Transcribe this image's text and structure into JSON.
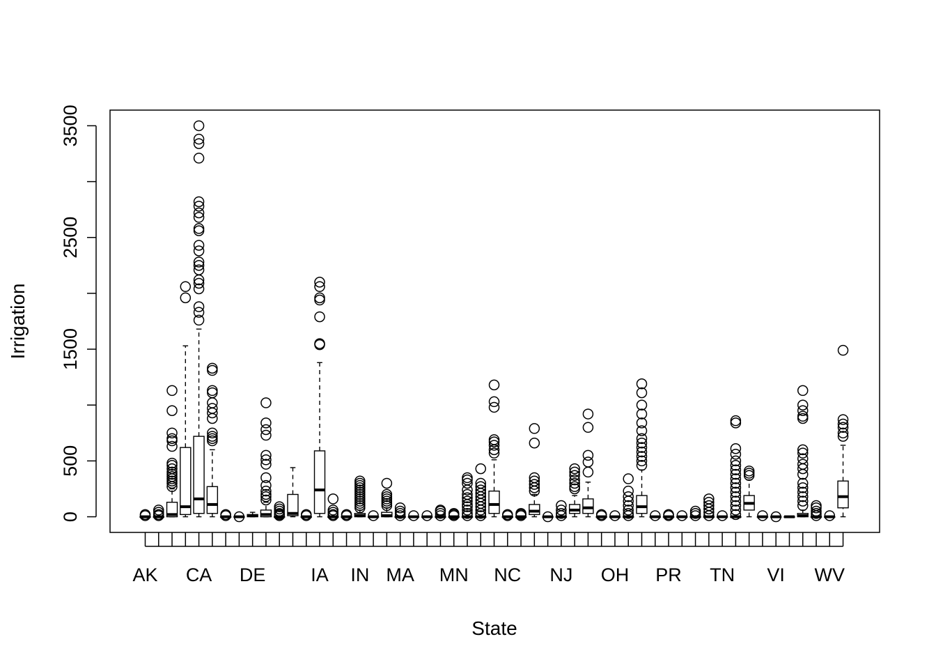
{
  "chart_data": {
    "type": "boxplot",
    "title": "",
    "xlabel": "State",
    "ylabel": "Irrigation",
    "ylim": [
      -140,
      3640
    ],
    "yticks": [
      0,
      500,
      1500,
      2500,
      3500
    ],
    "grid": false,
    "legend": "none",
    "category_labels": [
      "AK",
      "CA",
      "DE",
      "IA",
      "IN",
      "MA",
      "MN",
      "NC",
      "NJ",
      "OH",
      "PR",
      "TN",
      "VI",
      "WV"
    ],
    "boxes": [
      {
        "label": "AK",
        "stats": [
          0,
          0,
          0,
          0,
          0
        ],
        "outliers": [
          10,
          20
        ]
      },
      {
        "label": "",
        "stats": [
          0,
          0,
          0,
          0,
          0
        ],
        "outliers": [
          10,
          20,
          40,
          60
        ]
      },
      {
        "label": "",
        "stats": [
          0,
          0,
          20,
          130,
          250
        ],
        "outliers": [
          270,
          300,
          320,
          340,
          360,
          380,
          400,
          430,
          460,
          480,
          630,
          680,
          700,
          750,
          950,
          1130
        ]
      },
      {
        "label": "",
        "stats": [
          0,
          20,
          90,
          620,
          1530
        ],
        "outliers": [
          1960,
          2060
        ]
      },
      {
        "label": "CA",
        "stats": [
          0,
          30,
          160,
          720,
          1680
        ],
        "outliers": [
          1760,
          1830,
          1880,
          2040,
          2090,
          2120,
          2210,
          2250,
          2280,
          2380,
          2430,
          2560,
          2580,
          2680,
          2720,
          2780,
          2820,
          3210,
          3340,
          3380,
          3500
        ]
      },
      {
        "label": "",
        "stats": [
          0,
          30,
          110,
          270,
          600
        ],
        "outliers": [
          680,
          700,
          720,
          750,
          880,
          930,
          970,
          1020,
          1110,
          1130,
          1310,
          1330
        ]
      },
      {
        "label": "",
        "stats": [
          0,
          0,
          0,
          0,
          0
        ],
        "outliers": [
          10,
          20
        ]
      },
      {
        "label": "",
        "stats": [
          0,
          0,
          0,
          0,
          0
        ],
        "outliers": [
          0
        ]
      },
      {
        "label": "DE",
        "stats": [
          0,
          0,
          10,
          20,
          40
        ],
        "outliers": []
      },
      {
        "label": "",
        "stats": [
          0,
          0,
          20,
          60,
          130
        ],
        "outliers": [
          150,
          180,
          200,
          230,
          280,
          350,
          470,
          510,
          550,
          730,
          780,
          840,
          1020
        ]
      },
      {
        "label": "",
        "stats": [
          0,
          0,
          0,
          0,
          0
        ],
        "outliers": [
          10,
          20,
          30,
          50,
          70,
          90
        ]
      },
      {
        "label": "",
        "stats": [
          0,
          10,
          30,
          200,
          440
        ],
        "outliers": []
      },
      {
        "label": "",
        "stats": [
          0,
          0,
          0,
          0,
          0
        ],
        "outliers": [
          10,
          20
        ]
      },
      {
        "label": "IA",
        "stats": [
          0,
          30,
          240,
          590,
          1380
        ],
        "outliers": [
          1540,
          1550,
          1790,
          1940,
          1960,
          2060,
          2100
        ]
      },
      {
        "label": "",
        "stats": [
          0,
          0,
          0,
          0,
          0
        ],
        "outliers": [
          10,
          20,
          40,
          60,
          160
        ]
      },
      {
        "label": "",
        "stats": [
          0,
          0,
          0,
          0,
          0
        ],
        "outliers": [
          10,
          20
        ]
      },
      {
        "label": "IN",
        "stats": [
          0,
          0,
          10,
          30,
          60
        ],
        "outliers": [
          80,
          100,
          120,
          140,
          160,
          180,
          200,
          220,
          240,
          260,
          280,
          300,
          320
        ]
      },
      {
        "label": "",
        "stats": [
          0,
          0,
          0,
          0,
          0
        ],
        "outliers": [
          10
        ]
      },
      {
        "label": "",
        "stats": [
          0,
          0,
          10,
          40,
          80
        ],
        "outliers": [
          100,
          120,
          140,
          160,
          180,
          200,
          300
        ]
      },
      {
        "label": "MA",
        "stats": [
          0,
          0,
          0,
          0,
          0
        ],
        "outliers": [
          10,
          30,
          50,
          80
        ]
      },
      {
        "label": "",
        "stats": [
          0,
          0,
          0,
          0,
          0
        ],
        "outliers": [
          10
        ]
      },
      {
        "label": "",
        "stats": [
          0,
          0,
          0,
          0,
          0
        ],
        "outliers": [
          10
        ]
      },
      {
        "label": "",
        "stats": [
          0,
          0,
          0,
          0,
          0
        ],
        "outliers": [
          10,
          30,
          50,
          60
        ]
      },
      {
        "label": "MN",
        "stats": [
          0,
          0,
          0,
          0,
          0
        ],
        "outliers": [
          10,
          20,
          30
        ]
      },
      {
        "label": "",
        "stats": [
          0,
          0,
          0,
          0,
          0
        ],
        "outliers": [
          10,
          30,
          60,
          90,
          110,
          140,
          170,
          200,
          240,
          300,
          330,
          350
        ]
      },
      {
        "label": "",
        "stats": [
          0,
          0,
          0,
          0,
          0
        ],
        "outliers": [
          10,
          30,
          60,
          90,
          120,
          150,
          180,
          210,
          240,
          270,
          300,
          430
        ]
      },
      {
        "label": "",
        "stats": [
          0,
          30,
          110,
          230,
          510
        ],
        "outliers": [
          570,
          600,
          640,
          670,
          690,
          980,
          1030,
          1180
        ]
      },
      {
        "label": "NC",
        "stats": [
          0,
          0,
          0,
          0,
          0
        ],
        "outliers": [
          10,
          20
        ]
      },
      {
        "label": "",
        "stats": [
          0,
          0,
          0,
          0,
          0
        ],
        "outliers": [
          10,
          20,
          30
        ]
      },
      {
        "label": "",
        "stats": [
          0,
          20,
          50,
          110,
          200
        ],
        "outliers": [
          230,
          260,
          290,
          320,
          350,
          660,
          790
        ]
      },
      {
        "label": "",
        "stats": [
          0,
          0,
          0,
          0,
          0
        ],
        "outliers": [
          0
        ]
      },
      {
        "label": "NJ",
        "stats": [
          0,
          0,
          0,
          0,
          0
        ],
        "outliers": [
          10,
          30,
          60,
          100
        ]
      },
      {
        "label": "",
        "stats": [
          0,
          30,
          60,
          110,
          190
        ],
        "outliers": [
          250,
          270,
          300,
          330,
          370,
          400,
          430
        ]
      },
      {
        "label": "",
        "stats": [
          0,
          30,
          80,
          160,
          310
        ],
        "outliers": [
          400,
          490,
          550,
          800,
          920
        ]
      },
      {
        "label": "",
        "stats": [
          0,
          0,
          0,
          0,
          0
        ],
        "outliers": [
          10,
          20
        ]
      },
      {
        "label": "OH",
        "stats": [
          0,
          0,
          0,
          0,
          0
        ],
        "outliers": [
          10
        ]
      },
      {
        "label": "",
        "stats": [
          0,
          0,
          0,
          0,
          0
        ],
        "outliers": [
          10,
          30,
          60,
          100,
          140,
          180,
          230,
          340
        ]
      },
      {
        "label": "",
        "stats": [
          0,
          30,
          90,
          190,
          420
        ],
        "outliers": [
          460,
          500,
          540,
          580,
          620,
          660,
          700,
          770,
          840,
          920,
          1000,
          1110,
          1190
        ]
      },
      {
        "label": "",
        "stats": [
          0,
          0,
          0,
          0,
          0
        ],
        "outliers": [
          10
        ]
      },
      {
        "label": "PR",
        "stats": [
          0,
          0,
          0,
          0,
          0
        ],
        "outliers": [
          10,
          20
        ]
      },
      {
        "label": "",
        "stats": [
          0,
          0,
          0,
          0,
          0
        ],
        "outliers": [
          10
        ]
      },
      {
        "label": "",
        "stats": [
          0,
          0,
          0,
          0,
          0
        ],
        "outliers": [
          10,
          30,
          50
        ]
      },
      {
        "label": "",
        "stats": [
          0,
          0,
          0,
          0,
          0
        ],
        "outliers": [
          10,
          40,
          70,
          100,
          130,
          160
        ]
      },
      {
        "label": "TN",
        "stats": [
          0,
          0,
          0,
          0,
          0
        ],
        "outliers": [
          10
        ]
      },
      {
        "label": "",
        "stats": [
          0,
          0,
          0,
          0,
          0
        ],
        "outliers": [
          20,
          60,
          100,
          140,
          180,
          220,
          260,
          300,
          340,
          380,
          420,
          460,
          500,
          560,
          610,
          840,
          860
        ]
      },
      {
        "label": "",
        "stats": [
          0,
          60,
          120,
          190,
          330
        ],
        "outliers": [
          370,
          390,
          410
        ]
      },
      {
        "label": "",
        "stats": [
          0,
          0,
          0,
          0,
          0
        ],
        "outliers": [
          10
        ]
      },
      {
        "label": "VI",
        "stats": [
          0,
          0,
          0,
          0,
          0
        ],
        "outliers": [
          0
        ]
      },
      {
        "label": "",
        "stats": [
          0,
          0,
          0,
          0,
          0
        ],
        "outliers": []
      },
      {
        "label": "",
        "stats": [
          0,
          0,
          10,
          30,
          60
        ],
        "outliers": [
          100,
          140,
          180,
          220,
          260,
          300,
          380,
          430,
          470,
          520,
          570,
          600,
          880,
          900,
          950,
          1000,
          1130
        ]
      },
      {
        "label": "",
        "stats": [
          0,
          0,
          0,
          0,
          0
        ],
        "outliers": [
          10,
          30,
          50,
          80,
          100
        ]
      },
      {
        "label": "WV",
        "stats": [
          0,
          0,
          0,
          0,
          0
        ],
        "outliers": [
          10
        ]
      },
      {
        "label": "",
        "stats": [
          0,
          80,
          180,
          320,
          640
        ],
        "outliers": [
          720,
          750,
          800,
          830,
          870,
          1490
        ]
      }
    ]
  }
}
